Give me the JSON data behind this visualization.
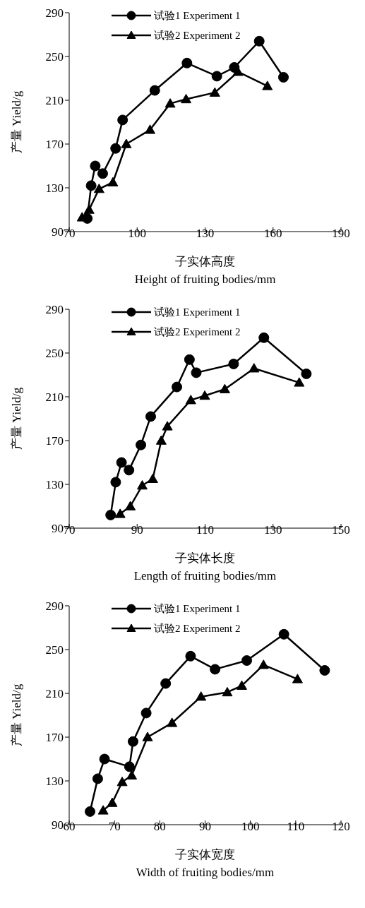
{
  "chart_data": [
    {
      "type": "line",
      "xlabel": "子实体高度\nHeight of fruiting bodies/mm",
      "ylabel": "产量 Yield/g",
      "xlim": [
        70,
        190
      ],
      "xticks": [
        70,
        100,
        130,
        160,
        190
      ],
      "ylim": [
        90,
        290
      ],
      "yticks": [
        90,
        130,
        170,
        210,
        250,
        290
      ],
      "grid": false,
      "legend": "top",
      "line_style": "solid",
      "series": [
        {
          "name": "试验1 Experiment 1",
          "color": "#000000",
          "marker": "circle",
          "x": [
            78.0,
            79.7,
            81.5,
            84.8,
            90.5,
            93.6,
            107.8,
            122.0,
            135.2,
            142.9,
            153.9,
            164.6
          ],
          "values": [
            102,
            132,
            150,
            143,
            166,
            192,
            219,
            244,
            232,
            240,
            264,
            231
          ]
        },
        {
          "name": "试验2 Experiment 2",
          "color": "#000000",
          "marker": "triangle",
          "x": [
            75.7,
            78.8,
            83.2,
            89.3,
            95.2,
            105.7,
            114.6,
            121.6,
            134.3,
            144.5,
            157.5
          ],
          "values": [
            103,
            110,
            129,
            135,
            170,
            183,
            207,
            211,
            217,
            236,
            223
          ]
        }
      ]
    },
    {
      "type": "line",
      "xlabel": "子实体长度\nLength of fruiting bodies/mm",
      "ylabel": "产量 Yield/g",
      "xlim": [
        70,
        150
      ],
      "xticks": [
        70,
        90,
        110,
        130,
        150
      ],
      "ylim": [
        90,
        290
      ],
      "yticks": [
        90,
        130,
        170,
        210,
        250,
        290
      ],
      "grid": false,
      "legend": "top",
      "line_style": "solid",
      "series": [
        {
          "name": "试验1 Experiment 1",
          "color": "#000000",
          "marker": "circle",
          "x": [
            82.2,
            83.7,
            85.4,
            87.6,
            91.1,
            94.0,
            101.7,
            105.4,
            107.4,
            118.4,
            127.3,
            139.8
          ],
          "values": [
            102,
            132,
            150,
            143,
            166,
            192,
            219,
            244,
            232,
            240,
            264,
            231
          ]
        },
        {
          "name": "试验2 Experiment 2",
          "color": "#000000",
          "marker": "triangle",
          "x": [
            85.0,
            88.0,
            91.5,
            94.6,
            97.1,
            98.9,
            105.8,
            109.9,
            115.8,
            124.4,
            137.7
          ],
          "values": [
            103,
            110,
            129,
            135,
            170,
            183,
            207,
            211,
            217,
            236,
            223
          ]
        }
      ]
    },
    {
      "type": "line",
      "xlabel": "子实体宽度\nWidth of fruiting bodies/mm",
      "ylabel": "产量 Yield/g",
      "xlim": [
        60,
        120
      ],
      "xticks": [
        60,
        70,
        80,
        90,
        100,
        110,
        120
      ],
      "ylim": [
        90,
        290
      ],
      "yticks": [
        90,
        130,
        170,
        210,
        250,
        290
      ],
      "grid": false,
      "legend": "top",
      "line_style": "solid",
      "series": [
        {
          "name": "试验1 Experiment 1",
          "color": "#000000",
          "marker": "circle",
          "x": [
            64.6,
            66.3,
            67.8,
            73.3,
            74.1,
            77.0,
            81.3,
            86.8,
            92.2,
            99.2,
            107.4,
            116.4
          ],
          "values": [
            102,
            132,
            150,
            143,
            166,
            192,
            219,
            244,
            232,
            240,
            264,
            231
          ]
        },
        {
          "name": "试验2 Experiment 2",
          "color": "#000000",
          "marker": "triangle",
          "x": [
            67.5,
            69.5,
            71.7,
            73.8,
            77.3,
            82.7,
            89.1,
            94.9,
            98.1,
            102.9,
            110.4
          ],
          "values": [
            103,
            110,
            129,
            135,
            170,
            183,
            207,
            211,
            217,
            236,
            223
          ]
        }
      ]
    }
  ]
}
